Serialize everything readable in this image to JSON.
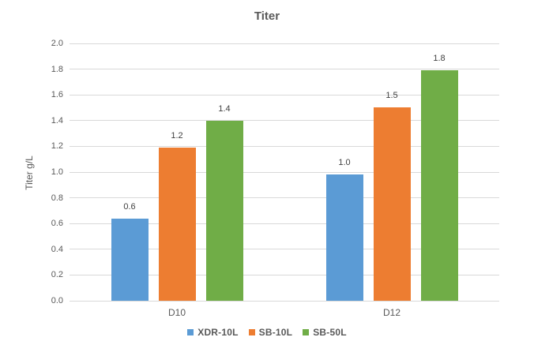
{
  "chart_data": {
    "type": "bar",
    "title": "Titer",
    "xlabel": "",
    "ylabel": "Titer g/L",
    "categories": [
      "D10",
      "D12"
    ],
    "series": [
      {
        "name": "XDR-10L",
        "color": "#5B9BD5",
        "values": [
          0.6,
          1.0
        ],
        "labels": [
          "0.6",
          "1.0"
        ],
        "plot_values": [
          0.64,
          0.98
        ]
      },
      {
        "name": "SB-10L",
        "color": "#ED7D31",
        "values": [
          1.2,
          1.5
        ],
        "labels": [
          "1.2",
          "1.5"
        ],
        "plot_values": [
          1.19,
          1.5
        ]
      },
      {
        "name": "SB-50L",
        "color": "#70AD47",
        "values": [
          1.4,
          1.8
        ],
        "labels": [
          "1.4",
          "1.8"
        ],
        "plot_values": [
          1.4,
          1.79
        ]
      }
    ],
    "ylim": [
      0.0,
      2.0
    ],
    "ytick_step": 0.2,
    "yticks": [
      "0.0",
      "0.2",
      "0.4",
      "0.6",
      "0.8",
      "1.0",
      "1.2",
      "1.4",
      "1.6",
      "1.8",
      "2.0"
    ],
    "grid": true,
    "grid_color": "#D9D9D9",
    "text_color": "#595959",
    "data_label_color": "#404040",
    "legend_position": "bottom"
  }
}
